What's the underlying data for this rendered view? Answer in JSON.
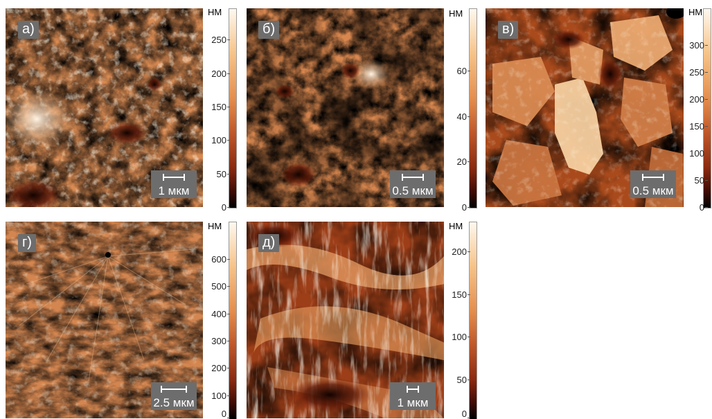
{
  "unit": "НМ",
  "panels": [
    {
      "id": "a",
      "label": "а)",
      "scale": "1 мкм",
      "ticks": [
        "250",
        "200",
        "150",
        "100",
        "50",
        "0"
      ],
      "ticklevels": [
        0.842,
        0.674,
        0.505,
        0.337,
        0.168,
        0.0
      ]
    },
    {
      "id": "b",
      "label": "б)",
      "scale": "0.5 мкм",
      "ticks": [
        "60",
        "40",
        "20",
        "0"
      ],
      "ticklevels": [
        0.686,
        0.457,
        0.229,
        0.0
      ]
    },
    {
      "id": "v",
      "label": "в)",
      "scale": "0.5 мкм",
      "ticks": [
        "300",
        "250",
        "200",
        "150",
        "100",
        "50",
        "0"
      ],
      "ticklevels": [
        0.814,
        0.678,
        0.543,
        0.407,
        0.271,
        0.136,
        0.0
      ]
    },
    {
      "id": "g",
      "label": "г)",
      "scale": "2.5 мкм",
      "ticks": [
        "600",
        "500",
        "400",
        "300",
        "200",
        "100",
        "0"
      ],
      "ticklevels": [
        0.813,
        0.678,
        0.542,
        0.407,
        0.271,
        0.136,
        0.0
      ]
    },
    {
      "id": "d",
      "label": "д)",
      "scale": "1 мкм",
      "ticks": [
        "200",
        "150",
        "100",
        "50",
        "0"
      ],
      "ticklevels": [
        0.852,
        0.639,
        0.426,
        0.213,
        0.0
      ]
    }
  ],
  "colors": {
    "dark": "#1a0502",
    "mid": "#b5531f",
    "light": "#f4c28e",
    "highlight": "#fff1e0",
    "ui_gray": "#6d6d6d"
  }
}
